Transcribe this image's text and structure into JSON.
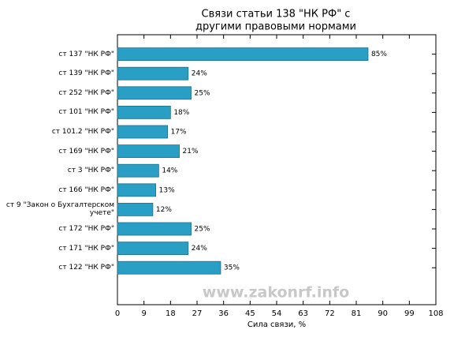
{
  "chart_data": {
    "type": "bar",
    "orientation": "horizontal",
    "title": [
      "Связи статьи 138 \"НК РФ\" с",
      "другими правовыми нормами"
    ],
    "xlabel": "Сила связи, %",
    "watermark": "www.zakonrf.info",
    "categories": [
      "ст 137 \"НК РФ\"",
      "ст 139 \"НК РФ\"",
      "ст 252 \"НК РФ\"",
      "ст 101 \"НК РФ\"",
      "ст 101.2 \"НК РФ\"",
      "ст 169 \"НК РФ\"",
      "ст 3 \"НК РФ\"",
      "ст 166 \"НК РФ\"",
      "ст 9 \"Закон о Бухгалтерском учете\"",
      "ст 172 \"НК РФ\"",
      "ст 171 \"НК РФ\"",
      "ст 122 \"НК РФ\""
    ],
    "values": [
      85,
      24,
      25,
      18,
      17,
      21,
      14,
      13,
      12,
      25,
      24,
      35
    ],
    "value_labels": [
      "85%",
      "24%",
      "25%",
      "18%",
      "17%",
      "21%",
      "14%",
      "13%",
      "12%",
      "25%",
      "24%",
      "35%"
    ],
    "color": "#2a9fc6",
    "xlim": [
      0,
      108
    ],
    "xticks": [
      0,
      9,
      18,
      27,
      36,
      45,
      54,
      63,
      72,
      81,
      90,
      99,
      108
    ]
  }
}
